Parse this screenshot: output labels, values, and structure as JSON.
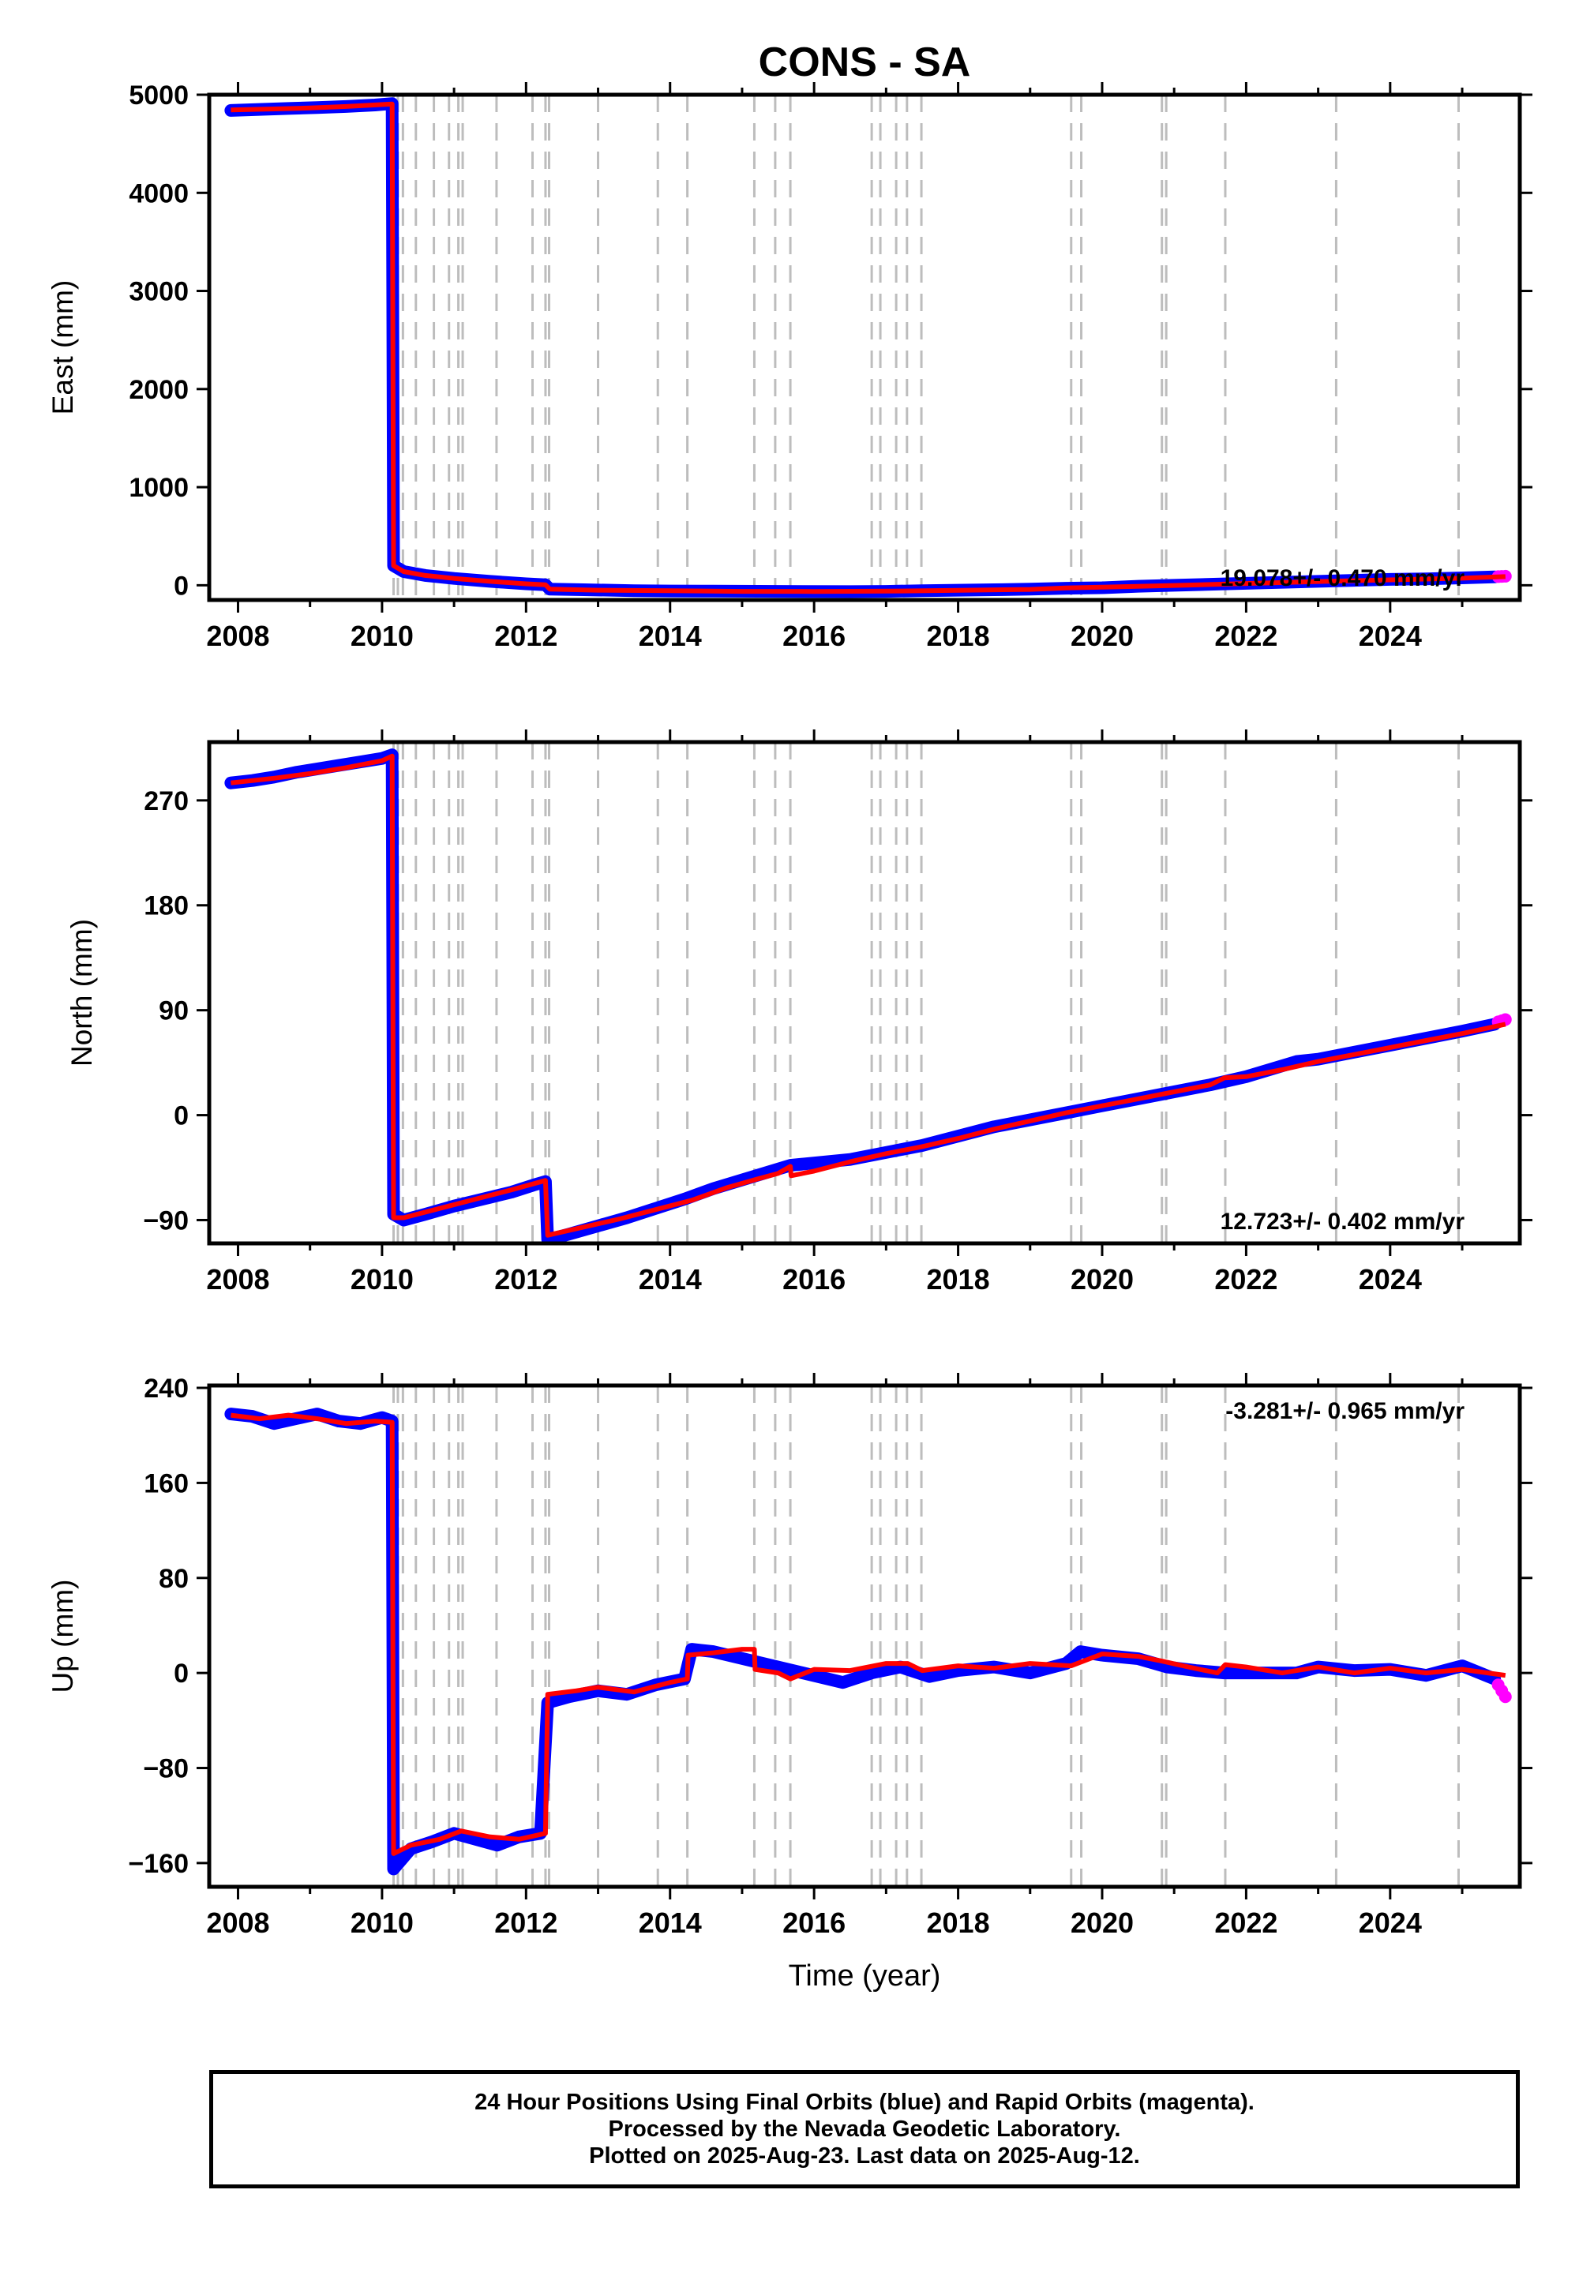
{
  "title": "CONS - SA",
  "x_tick_labels": [
    "2008",
    "2010",
    "2012",
    "2014",
    "2016",
    "2018",
    "2020",
    "2022",
    "2024"
  ],
  "time_label": "Time (year)",
  "colors": {
    "final_orbits": "#0000ff",
    "rapid_orbits": "#ff00ff",
    "model": "#ff0000",
    "event_lines": "#bdbdbd"
  },
  "event_years": [
    2010.16,
    2010.22,
    2010.29,
    2010.47,
    2010.72,
    2010.93,
    2011.06,
    2011.12,
    2011.59,
    2012.09,
    2012.27,
    2012.32,
    2013.0,
    2013.83,
    2014.24,
    2015.17,
    2015.46,
    2015.67,
    2016.8,
    2016.92,
    2017.14,
    2017.29,
    2017.49,
    2019.57,
    2019.71,
    2020.83,
    2020.89,
    2021.71,
    2023.25,
    2024.95
  ],
  "chart_data": [
    {
      "type": "scatter",
      "component": "East",
      "ylabel": "East (mm)",
      "ylim": [
        -150,
        5000
      ],
      "yticks": [
        0,
        1000,
        2000,
        3000,
        4000,
        5000
      ],
      "ytick_labels": [
        "0",
        "1000",
        "2000",
        "3000",
        "4000",
        "5000"
      ],
      "xlim": [
        2007.6,
        2025.8
      ],
      "annotation": "19.078+/- 0.470 mm/yr",
      "annotation_pos": "bottom-right",
      "series": [
        {
          "kind": "final",
          "x": [
            2007.9,
            2008.3,
            2008.7,
            2009.1,
            2009.5,
            2009.9,
            2010.14,
            2010.16,
            2010.3,
            2010.6,
            2011.0,
            2011.5,
            2012.0,
            2012.27,
            2012.33,
            2012.8,
            2013.5,
            2014.0,
            2014.6,
            2016.5,
            2017.0,
            2017.5,
            2018.0,
            2018.5,
            2019.0,
            2019.5,
            2020.0,
            2020.5,
            2021.0,
            2021.5,
            2022.0,
            2022.5,
            2023.0,
            2023.5,
            2024.0,
            2024.5,
            2025.0,
            2025.45
          ],
          "y": [
            4840,
            4850,
            4860,
            4870,
            4880,
            4895,
            4910,
            200,
            140,
            100,
            70,
            40,
            15,
            5,
            -40,
            -45,
            -55,
            -58,
            -60,
            -65,
            -62,
            -55,
            -50,
            -45,
            -40,
            -30,
            -25,
            -10,
            0,
            10,
            20,
            30,
            40,
            50,
            60,
            65,
            75,
            85
          ]
        },
        {
          "kind": "rapid",
          "x": [
            2025.5,
            2025.55,
            2025.6
          ],
          "y": [
            88,
            90,
            92
          ]
        },
        {
          "kind": "model",
          "x": [
            2007.9,
            2008.5,
            2009.0,
            2009.5,
            2010.14,
            2010.16,
            2010.3,
            2010.6,
            2011.0,
            2011.5,
            2012.0,
            2012.27,
            2012.33,
            2013.0,
            2014.0,
            2015.0,
            2016.0,
            2017.0,
            2018.0,
            2019.0,
            2019.5,
            2020.0,
            2021.0,
            2022.0,
            2023.0,
            2024.0,
            2025.0,
            2025.6
          ],
          "y": [
            4845,
            4855,
            4865,
            4880,
            4905,
            200,
            140,
            100,
            70,
            40,
            15,
            5,
            -40,
            -50,
            -55,
            -62,
            -63,
            -60,
            -52,
            -42,
            -28,
            -20,
            -2,
            18,
            38,
            55,
            72,
            88
          ]
        }
      ]
    },
    {
      "type": "scatter",
      "component": "North",
      "ylabel": "North (mm)",
      "ylim": [
        -110,
        320
      ],
      "yticks": [
        -90,
        0,
        90,
        180,
        270
      ],
      "ytick_labels": [
        "−90",
        "0",
        "90",
        "180",
        "270"
      ],
      "xlim": [
        2007.6,
        2025.8
      ],
      "annotation": "12.723+/- 0.402 mm/yr",
      "annotation_pos": "bottom-right",
      "series": [
        {
          "kind": "final",
          "x": [
            2007.9,
            2008.2,
            2008.5,
            2008.8,
            2009.1,
            2009.4,
            2009.7,
            2010.0,
            2010.14,
            2010.16,
            2010.3,
            2010.6,
            2011.0,
            2011.4,
            2011.8,
            2012.1,
            2012.27,
            2012.3,
            2012.6,
            2013.0,
            2013.4,
            2013.8,
            2014.2,
            2014.6,
            2015.67,
            2016.5,
            2017.0,
            2017.5,
            2018.0,
            2018.5,
            2019.0,
            2019.5,
            2020.0,
            2020.5,
            2021.0,
            2021.5,
            2022.0,
            2022.7,
            2023.0,
            2023.5,
            2024.0,
            2024.5,
            2025.0,
            2025.45
          ],
          "y": [
            285,
            287,
            290,
            294,
            297,
            300,
            303,
            306,
            309,
            -85,
            -90,
            -85,
            -78,
            -72,
            -66,
            -60,
            -57,
            -107,
            -102,
            -95,
            -88,
            -80,
            -72,
            -63,
            -43,
            -38,
            -32,
            -26,
            -18,
            -10,
            -4,
            2,
            8,
            14,
            20,
            26,
            33,
            46,
            48,
            54,
            60,
            66,
            72,
            78
          ]
        },
        {
          "kind": "rapid",
          "x": [
            2025.5,
            2025.55,
            2025.6
          ],
          "y": [
            80,
            81,
            82
          ]
        },
        {
          "kind": "model",
          "x": [
            2007.9,
            2008.5,
            2009.0,
            2009.5,
            2010.0,
            2010.14,
            2010.16,
            2010.3,
            2010.8,
            2011.3,
            2011.8,
            2012.27,
            2012.3,
            2012.8,
            2013.3,
            2013.8,
            2014.3,
            2014.8,
            2015.2,
            2015.5,
            2015.67,
            2015.68,
            2016.0,
            2016.5,
            2017.0,
            2017.5,
            2018.0,
            2018.5,
            2019.0,
            2019.5,
            2020.0,
            2020.5,
            2021.0,
            2021.5,
            2021.7,
            2022.0,
            2022.5,
            2023.0,
            2023.5,
            2024.0,
            2024.5,
            2025.0,
            2025.6
          ],
          "y": [
            285,
            289,
            293,
            298,
            304,
            308,
            -88,
            -88,
            -80,
            -72,
            -64,
            -56,
            -103,
            -96,
            -89,
            -81,
            -73,
            -62,
            -55,
            -50,
            -44,
            -52,
            -48,
            -40,
            -33,
            -27,
            -20,
            -12,
            -5,
            2,
            8,
            14,
            20,
            26,
            32,
            33,
            39,
            46,
            52,
            58,
            64,
            70,
            78
          ]
        }
      ]
    },
    {
      "type": "scatter",
      "component": "Up",
      "ylabel": "Up (mm)",
      "ylim": [
        -180,
        242
      ],
      "yticks": [
        -160,
        -80,
        0,
        80,
        160,
        240
      ],
      "ytick_labels": [
        "−160",
        "−80",
        "0",
        "80",
        "160",
        "240"
      ],
      "xlim": [
        2007.6,
        2025.8
      ],
      "annotation": "-3.281+/- 0.965 mm/yr",
      "annotation_pos": "top-right",
      "series": [
        {
          "kind": "final",
          "x": [
            2007.9,
            2008.2,
            2008.5,
            2008.8,
            2009.1,
            2009.4,
            2009.7,
            2010.0,
            2010.14,
            2010.16,
            2010.4,
            2010.7,
            2011.0,
            2011.3,
            2011.6,
            2011.9,
            2012.2,
            2012.3,
            2012.6,
            2013.0,
            2013.4,
            2013.8,
            2014.2,
            2014.3,
            2014.6,
            2016.4,
            2016.8,
            2017.2,
            2017.6,
            2018.0,
            2018.5,
            2019.0,
            2019.5,
            2019.7,
            2020.0,
            2020.5,
            2020.9,
            2021.3,
            2021.7,
            2022.7,
            2023.0,
            2023.5,
            2024.0,
            2024.5,
            2025.0,
            2025.45
          ],
          "y": [
            218,
            216,
            210,
            214,
            218,
            212,
            210,
            215,
            212,
            -165,
            -148,
            -142,
            -135,
            -140,
            -145,
            -138,
            -135,
            -25,
            -20,
            -15,
            -18,
            -10,
            -5,
            20,
            18,
            -8,
            0,
            5,
            -3,
            2,
            5,
            0,
            8,
            18,
            15,
            12,
            5,
            2,
            0,
            0,
            5,
            2,
            3,
            -2,
            6,
            -5
          ]
        },
        {
          "kind": "rapid",
          "x": [
            2025.5,
            2025.55,
            2025.6
          ],
          "y": [
            -10,
            -15,
            -20
          ]
        },
        {
          "kind": "model",
          "x": [
            2007.9,
            2008.3,
            2008.7,
            2009.1,
            2009.5,
            2009.9,
            2010.14,
            2010.16,
            2010.4,
            2010.8,
            2011.1,
            2011.5,
            2011.9,
            2012.27,
            2012.3,
            2012.7,
            2013.0,
            2013.5,
            2014.0,
            2014.24,
            2014.25,
            2014.6,
            2015.0,
            2015.17,
            2015.18,
            2015.5,
            2015.67,
            2016.0,
            2016.5,
            2017.0,
            2017.3,
            2017.5,
            2018.0,
            2018.5,
            2019.0,
            2019.57,
            2020.0,
            2020.5,
            2020.83,
            2021.2,
            2021.6,
            2021.71,
            2022.0,
            2022.5,
            2023.0,
            2023.5,
            2024.0,
            2024.5,
            2025.0,
            2025.6
          ],
          "y": [
            217,
            214,
            217,
            214,
            210,
            212,
            211,
            -152,
            -145,
            -140,
            -133,
            -138,
            -140,
            -135,
            -18,
            -15,
            -12,
            -16,
            -8,
            -5,
            15,
            17,
            20,
            20,
            3,
            0,
            -5,
            3,
            2,
            8,
            8,
            2,
            6,
            4,
            8,
            6,
            16,
            14,
            10,
            5,
            0,
            7,
            5,
            0,
            5,
            0,
            4,
            0,
            3,
            -2
          ]
        }
      ]
    }
  ],
  "footer": {
    "line1": "24 Hour Positions Using Final Orbits (blue) and Rapid Orbits (magenta).",
    "line2": "Processed by the Nevada Geodetic Laboratory.",
    "line3": "Plotted on 2025-Aug-23. Last data on 2025-Aug-12."
  }
}
